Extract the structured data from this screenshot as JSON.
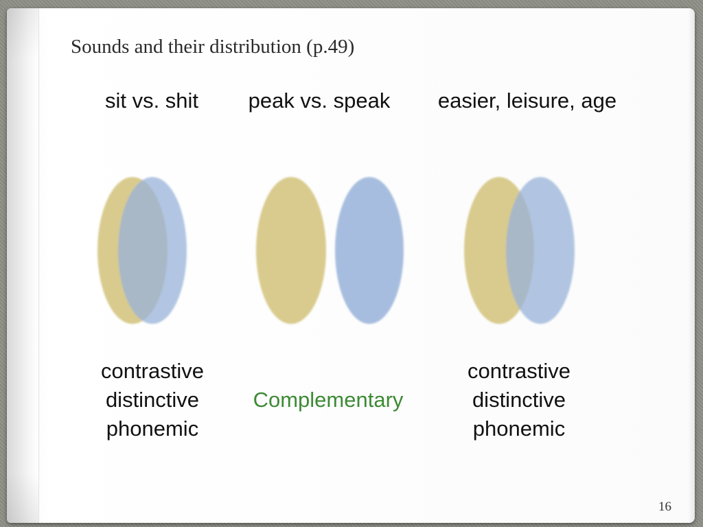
{
  "slide": {
    "title": "Sounds and their distribution (p.49)",
    "page_number": "16"
  },
  "examples": [
    "sit vs. shit",
    "peak vs. speak",
    "easier, leisure, age"
  ],
  "labels": {
    "left": [
      "contrastive",
      "distinctive",
      "phonemic"
    ],
    "middle": "Complementary",
    "right": [
      "contrastive",
      "distinctive",
      "phonemic"
    ]
  },
  "colors": {
    "ellipse_yellow": "#d2c27a",
    "ellipse_blue": "#98b3d9",
    "complementary_text": "#3d8a35"
  },
  "diagrams": [
    {
      "name": "left",
      "relation": "overlap"
    },
    {
      "name": "middle",
      "relation": "separate"
    },
    {
      "name": "right",
      "relation": "overlap"
    }
  ]
}
